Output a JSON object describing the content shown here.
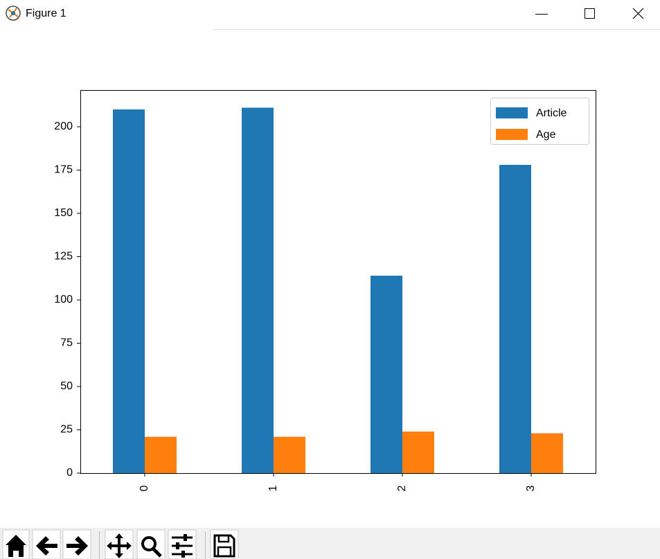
{
  "window": {
    "title": "Figure 1"
  },
  "chart_data": {
    "type": "bar",
    "categories": [
      "0",
      "1",
      "2",
      "3"
    ],
    "series": [
      {
        "name": "Article",
        "color": "#1f77b4",
        "values": [
          210,
          211,
          114,
          178
        ]
      },
      {
        "name": "Age",
        "color": "#ff7f0e",
        "values": [
          21,
          21,
          24,
          23
        ]
      }
    ],
    "ylim": [
      0,
      221.2
    ],
    "yticks": [
      0,
      25,
      50,
      75,
      100,
      125,
      150,
      175,
      200
    ],
    "legend": "upper right",
    "grid": false
  }
}
